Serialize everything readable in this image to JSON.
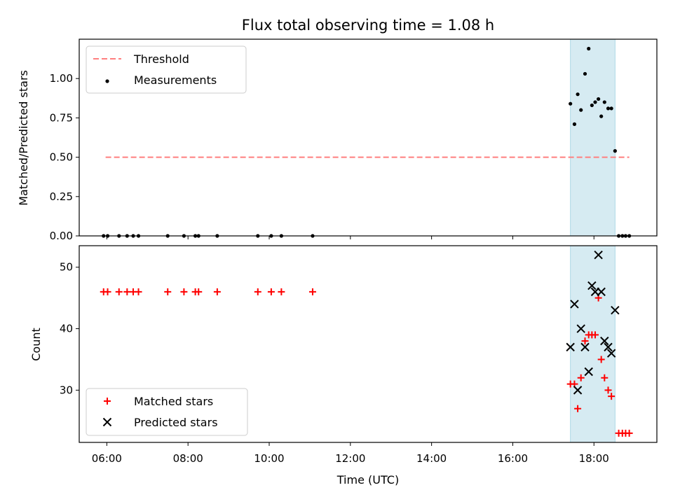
{
  "chart_data": [
    {
      "type": "scatter",
      "title": "Flux total observing time = 1.08 h",
      "xlabel": "",
      "ylabel": "Matched/Predicted stars",
      "ylim": [
        0,
        1.25
      ],
      "yticks": [
        0,
        0.25,
        0.5,
        0.75,
        1.0
      ],
      "ytick_labels": [
        "0.00",
        "0.25",
        "0.50",
        "0.75",
        "1.00"
      ],
      "xlim": [
        5.32,
        19.55
      ],
      "highlight_span": {
        "x": [
          17.42,
          18.52
        ],
        "color": "#add8e6"
      },
      "legend_position": "top-left",
      "threshold": {
        "name": "Threshold",
        "value": 0.5,
        "x": [
          5.97,
          18.87
        ],
        "color": "#ff7f7f",
        "style": "dashed"
      },
      "series": [
        {
          "name": "Measurements",
          "color": "#000000",
          "marker": "dot",
          "points": [
            [
              5.92,
              0
            ],
            [
              6.02,
              0
            ],
            [
              6.3,
              0
            ],
            [
              6.5,
              0
            ],
            [
              6.65,
              0
            ],
            [
              6.78,
              0
            ],
            [
              7.5,
              0
            ],
            [
              7.9,
              0
            ],
            [
              8.18,
              0
            ],
            [
              8.26,
              0
            ],
            [
              8.72,
              0
            ],
            [
              9.72,
              0
            ],
            [
              10.05,
              0
            ],
            [
              10.3,
              0
            ],
            [
              11.07,
              0
            ],
            [
              17.42,
              0.84
            ],
            [
              17.52,
              0.71
            ],
            [
              17.6,
              0.9
            ],
            [
              17.68,
              0.8
            ],
            [
              17.78,
              1.03
            ],
            [
              17.87,
              1.19
            ],
            [
              17.95,
              0.83
            ],
            [
              18.03,
              0.85
            ],
            [
              18.11,
              0.87
            ],
            [
              18.18,
              0.76
            ],
            [
              18.26,
              0.85
            ],
            [
              18.35,
              0.81
            ],
            [
              18.43,
              0.81
            ],
            [
              18.52,
              0.54
            ],
            [
              18.61,
              0
            ],
            [
              18.7,
              0
            ],
            [
              18.78,
              0
            ],
            [
              18.87,
              0
            ]
          ]
        }
      ]
    },
    {
      "type": "scatter",
      "title": "",
      "xlabel": "Time (UTC)",
      "ylabel": "Count",
      "ylim": [
        21.5,
        53.5
      ],
      "yticks": [
        30,
        40,
        50
      ],
      "ytick_labels": [
        "30",
        "40",
        "50"
      ],
      "xlim": [
        5.32,
        19.55
      ],
      "xticks": [
        6,
        8,
        10,
        12,
        14,
        16,
        18
      ],
      "xtick_labels": [
        "06:00",
        "08:00",
        "10:00",
        "12:00",
        "14:00",
        "16:00",
        "18:00"
      ],
      "highlight_span": {
        "x": [
          17.42,
          18.52
        ],
        "color": "#add8e6"
      },
      "legend_position": "bottom-left",
      "series": [
        {
          "name": "Matched stars",
          "color": "#ff0000",
          "marker": "plus",
          "points": [
            [
              5.92,
              46
            ],
            [
              6.02,
              46
            ],
            [
              6.3,
              46
            ],
            [
              6.5,
              46
            ],
            [
              6.65,
              46
            ],
            [
              6.78,
              46
            ],
            [
              7.5,
              46
            ],
            [
              7.9,
              46
            ],
            [
              8.18,
              46
            ],
            [
              8.26,
              46
            ],
            [
              8.72,
              46
            ],
            [
              9.72,
              46
            ],
            [
              10.05,
              46
            ],
            [
              10.3,
              46
            ],
            [
              11.07,
              46
            ],
            [
              17.42,
              31
            ],
            [
              17.52,
              31
            ],
            [
              17.6,
              27
            ],
            [
              17.68,
              32
            ],
            [
              17.78,
              38
            ],
            [
              17.87,
              39
            ],
            [
              17.95,
              39
            ],
            [
              18.03,
              39
            ],
            [
              18.11,
              45
            ],
            [
              18.18,
              35
            ],
            [
              18.26,
              32
            ],
            [
              18.35,
              30
            ],
            [
              18.43,
              29
            ],
            [
              18.61,
              23
            ],
            [
              18.7,
              23
            ],
            [
              18.78,
              23
            ],
            [
              18.87,
              23
            ]
          ]
        },
        {
          "name": "Predicted stars",
          "color": "#000000",
          "marker": "x",
          "points": [
            [
              17.42,
              37
            ],
            [
              17.52,
              44
            ],
            [
              17.6,
              30
            ],
            [
              17.68,
              40
            ],
            [
              17.78,
              37
            ],
            [
              17.87,
              33
            ],
            [
              17.95,
              47
            ],
            [
              18.03,
              46
            ],
            [
              18.11,
              52
            ],
            [
              18.18,
              46
            ],
            [
              18.26,
              38
            ],
            [
              18.35,
              37
            ],
            [
              18.43,
              36
            ],
            [
              18.52,
              43
            ]
          ]
        }
      ]
    }
  ]
}
